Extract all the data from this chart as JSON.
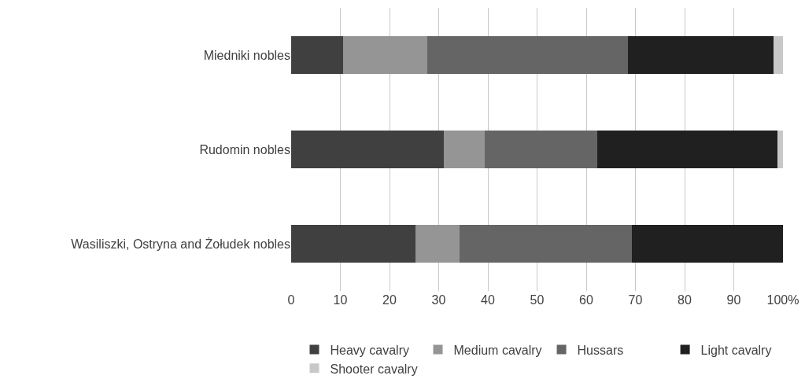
{
  "chart_data": {
    "type": "bar",
    "orientation": "horizontal",
    "stacked": true,
    "categories": [
      "Miedniki nobles",
      "Rudomin nobles",
      "Wasiliszki, Ostryna and Żołudek nobles"
    ],
    "series": [
      {
        "name": "Heavy cavalry",
        "color": "#404040",
        "values": [
          10.5,
          31.1,
          25.3
        ]
      },
      {
        "name": "Medium cavalry",
        "color": "#959595",
        "values": [
          17.1,
          8.3,
          9.0
        ]
      },
      {
        "name": "Hussars",
        "color": "#656565",
        "values": [
          40.8,
          22.9,
          35.0
        ]
      },
      {
        "name": "Light cavalry",
        "color": "#202020",
        "values": [
          29.6,
          36.6,
          30.7
        ]
      },
      {
        "name": "Shooter cavalry",
        "color": "#c8c8c8",
        "values": [
          2.0,
          1.1,
          0
        ]
      }
    ],
    "xlim": [
      0,
      100
    ],
    "xticks": [
      0,
      10,
      20,
      30,
      40,
      50,
      60,
      70,
      80,
      90,
      {
        "value": 100,
        "label": "100%"
      }
    ],
    "grid": "x",
    "legend": "bottom"
  }
}
